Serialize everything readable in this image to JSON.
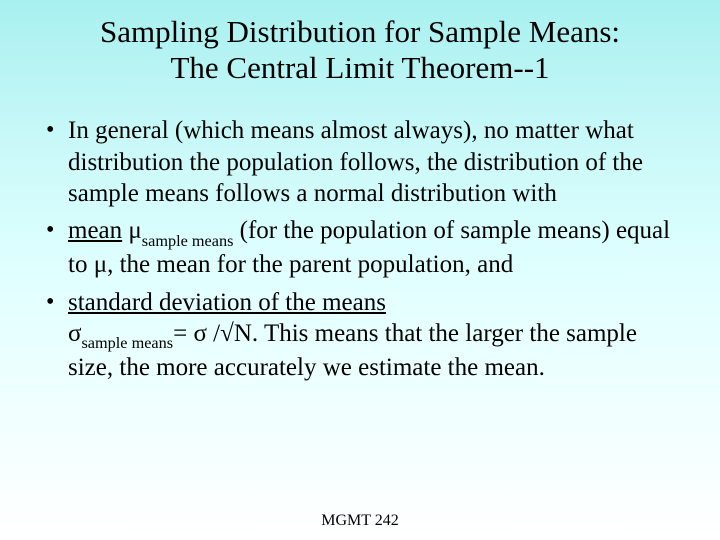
{
  "title_line1": "Sampling Distribution for Sample Means:",
  "title_line2": "The Central Limit Theorem--1",
  "bullets": {
    "b1": "In general (which means almost always), no matter what distribution the population follows, the distribution of the sample means  follows a normal distribution with",
    "b2_underline": "mean",
    "b2_sym1": " μ",
    "b2_sub1": "sample means",
    "b2_text1": " (for the population of sample means)  equal to μ, the mean for the parent population, and",
    "b3_underline": "standard deviation of the means",
    "b3_br_sym": "σ",
    "b3_sub": "sample means",
    "b3_text": "= σ /√N.   This means that the larger the sample size, the more accurately we estimate the mean."
  },
  "footer": "MGMT 242",
  "colors": {
    "text": "#000000",
    "bg_top": "#a8f0f0",
    "bg_bottom": "#ffffff"
  },
  "fontsizes": {
    "title": 31,
    "body": 25,
    "footer": 16
  }
}
